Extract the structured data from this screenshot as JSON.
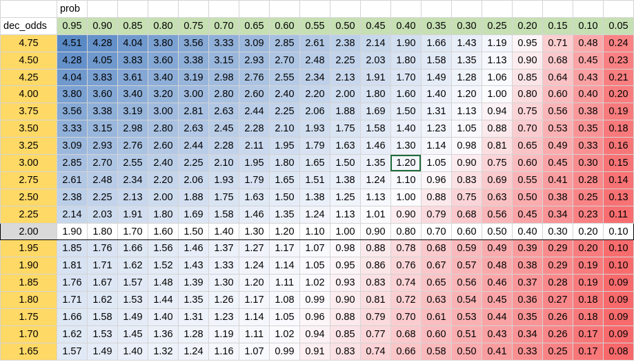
{
  "sheet": {
    "top_label": "prob",
    "corner_label": "dec_odds",
    "probs": [
      "0.95",
      "0.90",
      "0.85",
      "0.80",
      "0.75",
      "0.70",
      "0.65",
      "0.60",
      "0.55",
      "0.50",
      "0.45",
      "0.40",
      "0.35",
      "0.30",
      "0.25",
      "0.20",
      "0.15",
      "0.10",
      "0.05"
    ],
    "rows": [
      {
        "odds": "4.75",
        "vals": [
          "4.51",
          "4.28",
          "4.04",
          "3.80",
          "3.56",
          "3.33",
          "3.09",
          "2.85",
          "2.61",
          "2.38",
          "2.14",
          "1.90",
          "1.66",
          "1.43",
          "1.19",
          "0.95",
          "0.71",
          "0.48",
          "0.24"
        ]
      },
      {
        "odds": "4.50",
        "vals": [
          "4.28",
          "4.05",
          "3.83",
          "3.60",
          "3.38",
          "3.15",
          "2.93",
          "2.70",
          "2.48",
          "2.25",
          "2.03",
          "1.80",
          "1.58",
          "1.35",
          "1.13",
          "0.90",
          "0.68",
          "0.45",
          "0.23"
        ]
      },
      {
        "odds": "4.25",
        "vals": [
          "4.04",
          "3.83",
          "3.61",
          "3.40",
          "3.19",
          "2.98",
          "2.76",
          "2.55",
          "2.34",
          "2.13",
          "1.91",
          "1.70",
          "1.49",
          "1.28",
          "1.06",
          "0.85",
          "0.64",
          "0.43",
          "0.21"
        ]
      },
      {
        "odds": "4.00",
        "vals": [
          "3.80",
          "3.60",
          "3.40",
          "3.20",
          "3.00",
          "2.80",
          "2.60",
          "2.40",
          "2.20",
          "2.00",
          "1.80",
          "1.60",
          "1.40",
          "1.20",
          "1.00",
          "0.80",
          "0.60",
          "0.40",
          "0.20"
        ]
      },
      {
        "odds": "3.75",
        "vals": [
          "3.56",
          "3.38",
          "3.19",
          "3.00",
          "2.81",
          "2.63",
          "2.44",
          "2.25",
          "2.06",
          "1.88",
          "1.69",
          "1.50",
          "1.31",
          "1.13",
          "0.94",
          "0.75",
          "0.56",
          "0.38",
          "0.19"
        ]
      },
      {
        "odds": "3.50",
        "vals": [
          "3.33",
          "3.15",
          "2.98",
          "2.80",
          "2.63",
          "2.45",
          "2.28",
          "2.10",
          "1.93",
          "1.75",
          "1.58",
          "1.40",
          "1.23",
          "1.05",
          "0.88",
          "0.70",
          "0.53",
          "0.35",
          "0.18"
        ]
      },
      {
        "odds": "3.25",
        "vals": [
          "3.09",
          "2.93",
          "2.76",
          "2.60",
          "2.44",
          "2.28",
          "2.11",
          "1.95",
          "1.79",
          "1.63",
          "1.46",
          "1.30",
          "1.14",
          "0.98",
          "0.81",
          "0.65",
          "0.49",
          "0.33",
          "0.16"
        ]
      },
      {
        "odds": "3.00",
        "vals": [
          "2.85",
          "2.70",
          "2.55",
          "2.40",
          "2.25",
          "2.10",
          "1.95",
          "1.80",
          "1.65",
          "1.50",
          "1.35",
          "1.20",
          "1.05",
          "0.90",
          "0.75",
          "0.60",
          "0.45",
          "0.30",
          "0.15"
        ]
      },
      {
        "odds": "2.75",
        "vals": [
          "2.61",
          "2.48",
          "2.34",
          "2.20",
          "2.06",
          "1.93",
          "1.79",
          "1.65",
          "1.51",
          "1.38",
          "1.24",
          "1.10",
          "0.96",
          "0.83",
          "0.69",
          "0.55",
          "0.41",
          "0.28",
          "0.14"
        ]
      },
      {
        "odds": "2.50",
        "vals": [
          "2.38",
          "2.25",
          "2.13",
          "2.00",
          "1.88",
          "1.75",
          "1.63",
          "1.50",
          "1.38",
          "1.25",
          "1.13",
          "1.00",
          "0.88",
          "0.75",
          "0.63",
          "0.50",
          "0.38",
          "0.25",
          "0.13"
        ]
      },
      {
        "odds": "2.25",
        "vals": [
          "2.14",
          "2.03",
          "1.91",
          "1.80",
          "1.69",
          "1.58",
          "1.46",
          "1.35",
          "1.24",
          "1.13",
          "1.01",
          "0.90",
          "0.79",
          "0.68",
          "0.56",
          "0.45",
          "0.34",
          "0.23",
          "0.11"
        ]
      },
      {
        "odds": "2.00",
        "vals": [
          "1.90",
          "1.80",
          "1.70",
          "1.60",
          "1.50",
          "1.40",
          "1.30",
          "1.20",
          "1.10",
          "1.00",
          "0.90",
          "0.80",
          "0.70",
          "0.60",
          "0.50",
          "0.40",
          "0.30",
          "0.20",
          "0.10"
        ]
      },
      {
        "odds": "1.95",
        "vals": [
          "1.85",
          "1.76",
          "1.66",
          "1.56",
          "1.46",
          "1.37",
          "1.27",
          "1.17",
          "1.07",
          "0.98",
          "0.88",
          "0.78",
          "0.68",
          "0.59",
          "0.49",
          "0.39",
          "0.29",
          "0.20",
          "0.10"
        ]
      },
      {
        "odds": "1.90",
        "vals": [
          "1.81",
          "1.71",
          "1.62",
          "1.52",
          "1.43",
          "1.33",
          "1.24",
          "1.14",
          "1.05",
          "0.95",
          "0.86",
          "0.76",
          "0.67",
          "0.57",
          "0.48",
          "0.38",
          "0.29",
          "0.19",
          "0.10"
        ]
      },
      {
        "odds": "1.85",
        "vals": [
          "1.76",
          "1.67",
          "1.57",
          "1.48",
          "1.39",
          "1.30",
          "1.20",
          "1.11",
          "1.02",
          "0.93",
          "0.83",
          "0.74",
          "0.65",
          "0.56",
          "0.46",
          "0.37",
          "0.28",
          "0.19",
          "0.09"
        ]
      },
      {
        "odds": "1.80",
        "vals": [
          "1.71",
          "1.62",
          "1.53",
          "1.44",
          "1.35",
          "1.26",
          "1.17",
          "1.08",
          "0.99",
          "0.90",
          "0.81",
          "0.72",
          "0.63",
          "0.54",
          "0.45",
          "0.36",
          "0.27",
          "0.18",
          "0.09"
        ]
      },
      {
        "odds": "1.75",
        "vals": [
          "1.66",
          "1.58",
          "1.49",
          "1.40",
          "1.31",
          "1.23",
          "1.14",
          "1.05",
          "0.96",
          "0.88",
          "0.79",
          "0.70",
          "0.61",
          "0.53",
          "0.44",
          "0.35",
          "0.26",
          "0.18",
          "0.09"
        ]
      },
      {
        "odds": "1.70",
        "vals": [
          "1.62",
          "1.53",
          "1.45",
          "1.36",
          "1.28",
          "1.19",
          "1.11",
          "1.02",
          "0.94",
          "0.85",
          "0.77",
          "0.68",
          "0.60",
          "0.51",
          "0.43",
          "0.34",
          "0.26",
          "0.17",
          "0.09"
        ]
      },
      {
        "odds": "1.65",
        "vals": [
          "1.57",
          "1.49",
          "1.40",
          "1.32",
          "1.24",
          "1.16",
          "1.07",
          "0.99",
          "0.91",
          "0.83",
          "0.74",
          "0.66",
          "0.58",
          "0.50",
          "0.41",
          "0.33",
          "0.25",
          "0.17",
          "0.08"
        ]
      }
    ],
    "highlight_row_odds": "2.00",
    "selected_cell": {
      "row_odds": "3.00",
      "prob": "0.40"
    },
    "colors": {
      "row_header": "#ffd966",
      "col_header": "#c6e0b4",
      "highlight_row": "#d9d9d9",
      "scale_low": "#f8696b",
      "scale_mid": "#fcfcff",
      "scale_high": "#5a8ac6",
      "selection": "#1e6b3a"
    }
  }
}
